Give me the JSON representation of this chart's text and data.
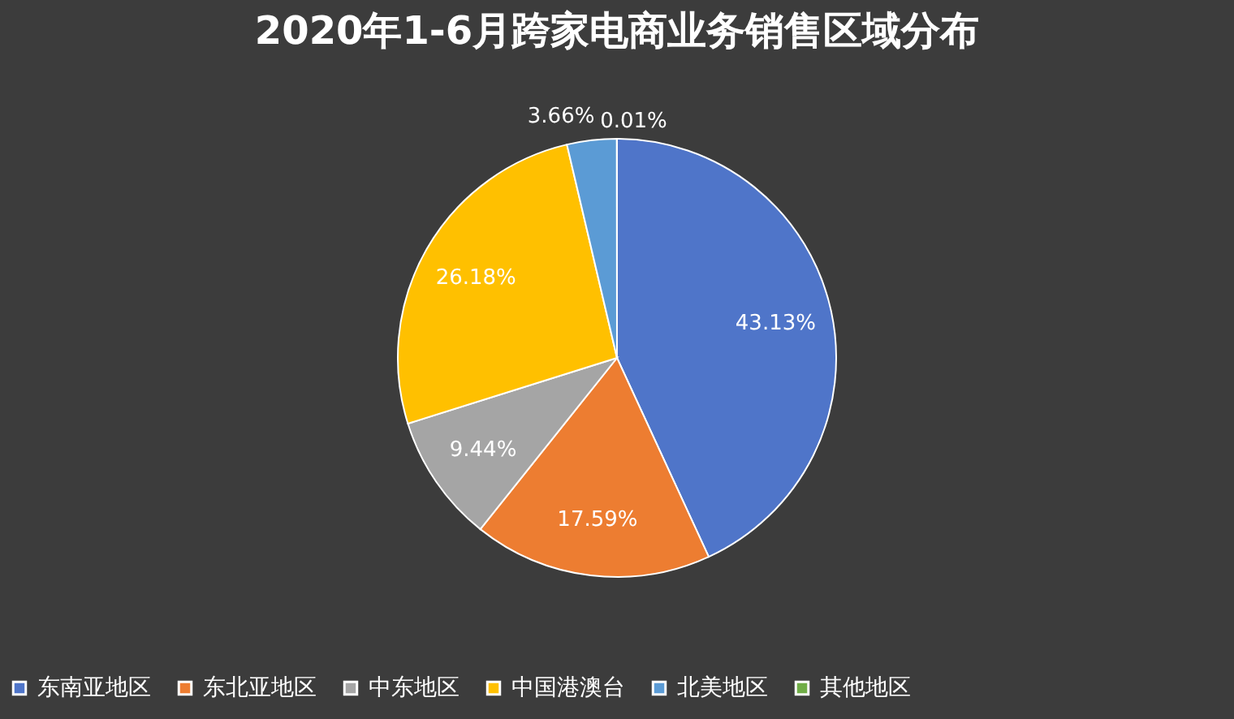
{
  "chart_data": {
    "type": "pie",
    "title": "2020年1-6月跨家电商业务销售区域分布",
    "categories": [
      "东南亚地区",
      "东北亚地区",
      "中东地区",
      "中国港澳台",
      "北美地区",
      "其他地区"
    ],
    "values": [
      43.13,
      17.59,
      9.44,
      26.18,
      3.66,
      0.01
    ],
    "colors": [
      "#4f75c9",
      "#ed7d31",
      "#a5a5a5",
      "#ffc000",
      "#5b9bd5",
      "#70ad47"
    ],
    "value_labels": [
      "43.13%",
      "17.59%",
      "9.44%",
      "26.18%",
      "3.66%",
      "0.01%"
    ],
    "legend": "bottom"
  }
}
